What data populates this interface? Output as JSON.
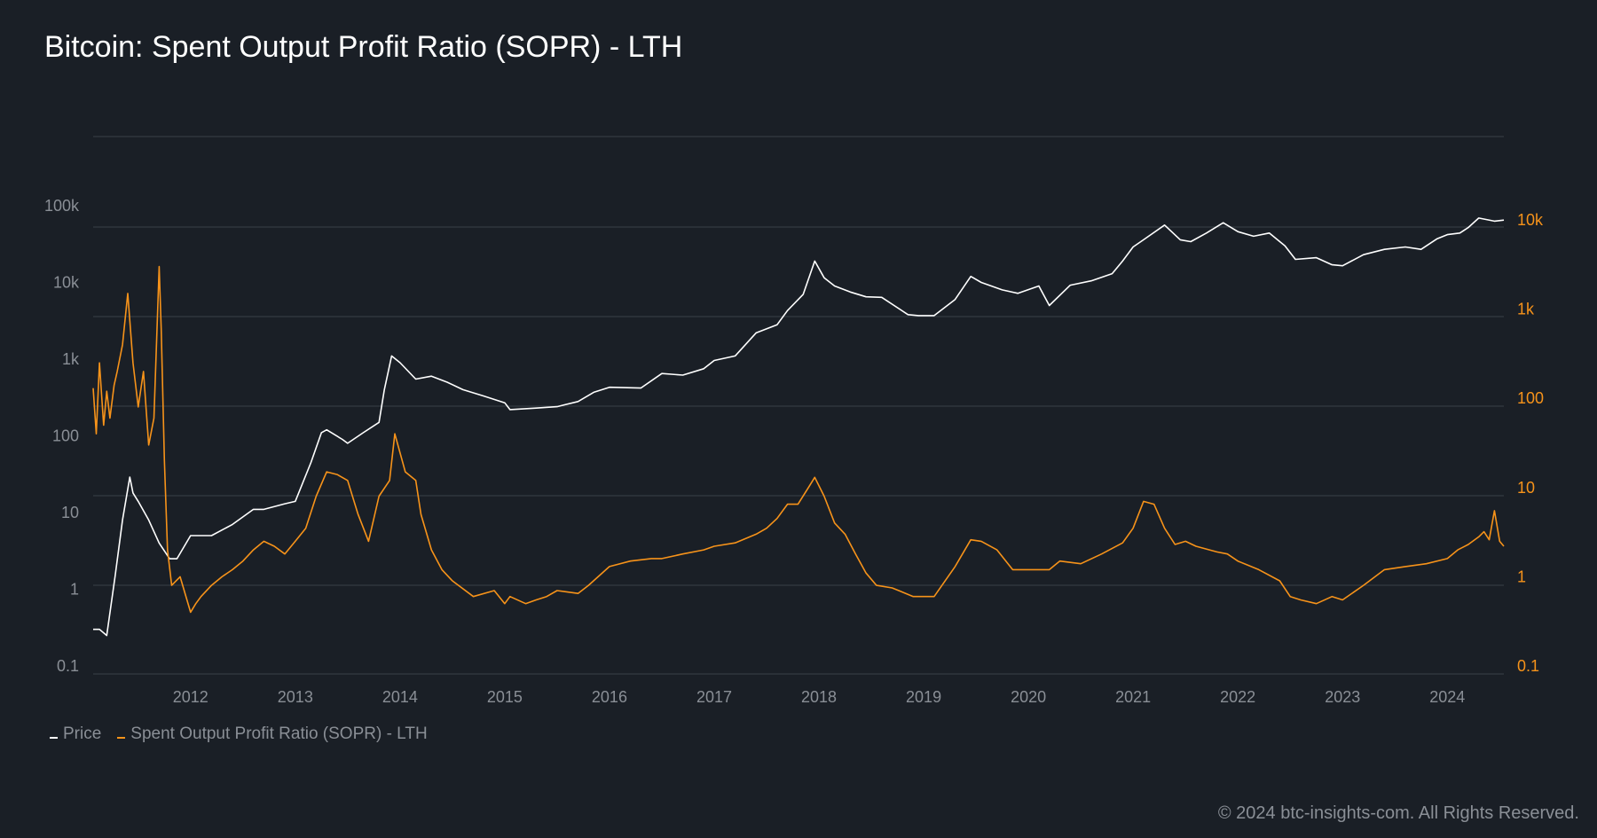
{
  "title": "Bitcoin: Spent Output Profit Ratio (SOPR) - LTH",
  "copyright": "© 2024 btc-insights-com. All Rights Reserved.",
  "colors": {
    "background": "#1a1f26",
    "grid": "#3a4048",
    "price": "#ffffff",
    "sopr": "#f7931a",
    "axis_text": "#8a8f96",
    "title": "#ffffff"
  },
  "chart_data": {
    "type": "line",
    "title": "Bitcoin: Spent Output Profit Ratio (SOPR) - LTH",
    "xlabel": "",
    "x_ticks": [
      "2012",
      "2013",
      "2014",
      "2015",
      "2016",
      "2017",
      "2018",
      "2019",
      "2020",
      "2021",
      "2022",
      "2023",
      "2024"
    ],
    "x_range": [
      2011.07,
      2024.54
    ],
    "left_axis": {
      "scale": "log",
      "ticks": [
        "0.1",
        "1",
        "10",
        "100",
        "1k",
        "10k",
        "100k"
      ],
      "range": [
        0.1,
        100000
      ]
    },
    "right_axis": {
      "scale": "log",
      "ticks": [
        "0.1",
        "1",
        "10",
        "100",
        "1k",
        "10k"
      ],
      "range": [
        0.1,
        10000
      ]
    },
    "grid": true,
    "legend": "bottom-left",
    "series": [
      {
        "name": "Price",
        "axis": "left",
        "color": "#ffffff",
        "x": [
          2011.07,
          2011.13,
          2011.2,
          2011.28,
          2011.35,
          2011.42,
          2011.45,
          2011.5,
          2011.6,
          2011.7,
          2011.8,
          2011.87,
          2012.0,
          2012.2,
          2012.4,
          2012.6,
          2012.7,
          2012.9,
          2013.0,
          2013.15,
          2013.25,
          2013.3,
          2013.45,
          2013.5,
          2013.65,
          2013.8,
          2013.85,
          2013.92,
          2014.0,
          2014.15,
          2014.3,
          2014.45,
          2014.6,
          2014.8,
          2015.0,
          2015.05,
          2015.3,
          2015.5,
          2015.7,
          2015.85,
          2016.0,
          2016.3,
          2016.5,
          2016.7,
          2016.9,
          2017.0,
          2017.2,
          2017.4,
          2017.6,
          2017.7,
          2017.85,
          2017.96,
          2018.05,
          2018.15,
          2018.3,
          2018.45,
          2018.6,
          2018.85,
          2018.95,
          2019.1,
          2019.3,
          2019.45,
          2019.55,
          2019.75,
          2019.9,
          2020.1,
          2020.2,
          2020.4,
          2020.6,
          2020.8,
          2020.9,
          2021.0,
          2021.1,
          2021.3,
          2021.45,
          2021.55,
          2021.7,
          2021.86,
          2022.0,
          2022.15,
          2022.3,
          2022.45,
          2022.55,
          2022.75,
          2022.9,
          2023.0,
          2023.2,
          2023.4,
          2023.6,
          2023.75,
          2023.9,
          2024.0,
          2024.12,
          2024.2,
          2024.3,
          2024.45,
          2024.54
        ],
        "values": [
          0.3,
          0.3,
          0.25,
          1.5,
          8,
          29,
          18,
          14,
          8,
          4,
          2.5,
          2.5,
          5,
          5,
          7,
          11,
          11,
          13,
          14,
          45,
          110,
          120,
          90,
          80,
          110,
          150,
          400,
          1100,
          900,
          550,
          600,
          500,
          400,
          330,
          270,
          220,
          230,
          240,
          280,
          370,
          430,
          420,
          650,
          620,
          750,
          960,
          1100,
          2200,
          2800,
          4300,
          7000,
          19000,
          11500,
          9000,
          7500,
          6500,
          6400,
          3800,
          3700,
          3700,
          6000,
          12000,
          10000,
          8000,
          7200,
          9000,
          5000,
          9200,
          10500,
          13000,
          19000,
          29000,
          36000,
          56000,
          36000,
          34000,
          44000,
          60000,
          46000,
          40000,
          44000,
          30000,
          20000,
          21000,
          17000,
          16500,
          23000,
          27000,
          29000,
          27000,
          37000,
          42000,
          44000,
          52000,
          69000,
          63000,
          65000
        ]
      },
      {
        "name": "Spent Output Profit Ratio (SOPR) - LTH",
        "axis": "right",
        "color": "#f7931a",
        "x": [
          2011.07,
          2011.1,
          2011.13,
          2011.17,
          2011.2,
          2011.23,
          2011.27,
          2011.3,
          2011.35,
          2011.4,
          2011.45,
          2011.5,
          2011.55,
          2011.6,
          2011.65,
          2011.7,
          2011.72,
          2011.75,
          2011.78,
          2011.82,
          2011.9,
          2012.0,
          2012.05,
          2012.1,
          2012.2,
          2012.3,
          2012.4,
          2012.5,
          2012.6,
          2012.7,
          2012.8,
          2012.9,
          2013.0,
          2013.1,
          2013.2,
          2013.3,
          2013.4,
          2013.5,
          2013.6,
          2013.7,
          2013.8,
          2013.9,
          2013.95,
          2014.05,
          2014.15,
          2014.2,
          2014.3,
          2014.4,
          2014.5,
          2014.7,
          2014.9,
          2015.0,
          2015.05,
          2015.2,
          2015.3,
          2015.4,
          2015.5,
          2015.7,
          2015.8,
          2016.0,
          2016.2,
          2016.4,
          2016.5,
          2016.7,
          2016.9,
          2017.0,
          2017.2,
          2017.4,
          2017.5,
          2017.6,
          2017.7,
          2017.8,
          2017.9,
          2017.96,
          2018.05,
          2018.15,
          2018.25,
          2018.35,
          2018.45,
          2018.55,
          2018.7,
          2018.9,
          2019.0,
          2019.1,
          2019.3,
          2019.45,
          2019.55,
          2019.7,
          2019.85,
          2020.0,
          2020.2,
          2020.3,
          2020.5,
          2020.7,
          2020.9,
          2021.0,
          2021.1,
          2021.2,
          2021.3,
          2021.4,
          2021.5,
          2021.6,
          2021.8,
          2021.9,
          2022.0,
          2022.2,
          2022.4,
          2022.5,
          2022.6,
          2022.75,
          2022.9,
          2023.0,
          2023.2,
          2023.4,
          2023.6,
          2023.8,
          2024.0,
          2024.1,
          2024.2,
          2024.3,
          2024.35,
          2024.4,
          2024.45,
          2024.5,
          2024.54
        ],
        "values": [
          130,
          40,
          250,
          50,
          120,
          60,
          140,
          200,
          400,
          1500,
          250,
          80,
          200,
          30,
          60,
          3000,
          600,
          20,
          2,
          0.8,
          1,
          0.4,
          0.5,
          0.6,
          0.8,
          1,
          1.2,
          1.5,
          2,
          2.5,
          2.2,
          1.8,
          2.5,
          3.5,
          8,
          15,
          14,
          12,
          5,
          2.5,
          8,
          12,
          40,
          15,
          12,
          5,
          2,
          1.2,
          0.9,
          0.6,
          0.7,
          0.5,
          0.6,
          0.5,
          0.55,
          0.6,
          0.7,
          0.65,
          0.8,
          1.3,
          1.5,
          1.6,
          1.6,
          1.8,
          2,
          2.2,
          2.4,
          3,
          3.5,
          4.5,
          6.5,
          6.5,
          10,
          13,
          8,
          4,
          3,
          1.8,
          1.1,
          0.8,
          0.75,
          0.6,
          0.6,
          0.6,
          1.3,
          2.6,
          2.5,
          2,
          1.2,
          1.2,
          1.2,
          1.5,
          1.4,
          1.8,
          2.4,
          3.5,
          7,
          6.5,
          3.5,
          2.3,
          2.5,
          2.2,
          1.9,
          1.8,
          1.5,
          1.2,
          0.9,
          0.6,
          0.55,
          0.5,
          0.6,
          0.55,
          0.8,
          1.2,
          1.3,
          1.4,
          1.6,
          2,
          2.3,
          2.8,
          3.2,
          2.6,
          5.5,
          2.5,
          2.2
        ]
      }
    ]
  }
}
